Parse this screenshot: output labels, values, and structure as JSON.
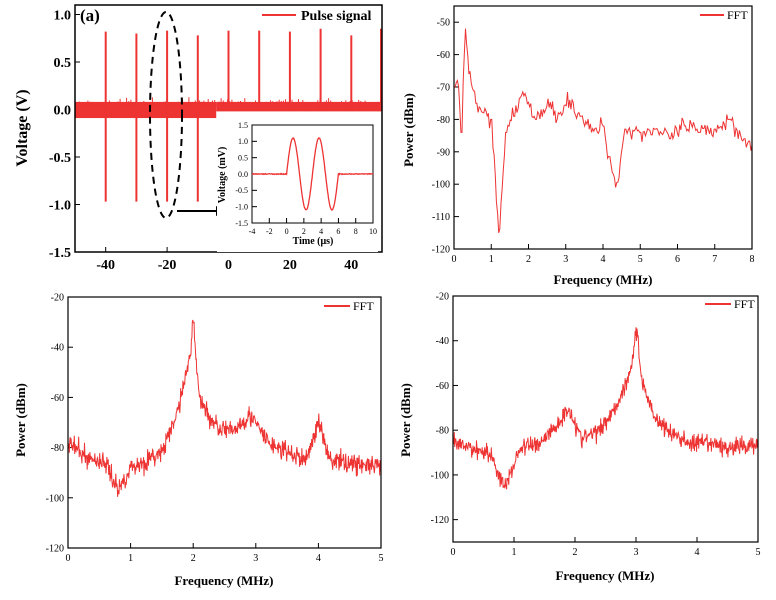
{
  "colors": {
    "signal": "#ee3333",
    "axis": "#000000"
  },
  "chart_data": [
    {
      "id": "a",
      "type": "line",
      "panel_label": "(a)",
      "title": "",
      "xlabel": "",
      "ylabel": "Voltage (V)",
      "xlim": [
        -50,
        50
      ],
      "ylim": [
        -1.5,
        1.1
      ],
      "xticks": [
        -40,
        -20,
        0,
        20,
        40
      ],
      "yticks": [
        -1.5,
        -1.0,
        -0.5,
        0.0,
        0.5,
        1.0
      ],
      "ytick_labels": [
        "-1.5",
        "-1.0",
        "-0.5",
        "0.0",
        "0.5",
        "1.0"
      ],
      "legend": [
        "Pulse signal"
      ],
      "legend_position": "top-right",
      "series": [
        {
          "name": "Pulse signal",
          "pulse_times": [
            -40,
            -30,
            -20,
            -10,
            0,
            10,
            20,
            30,
            40,
            50
          ],
          "pulse_max": [
            0.82,
            0.8,
            0.83,
            0.78,
            0.83,
            0.83,
            0.82,
            0.85,
            0.78,
            0.85
          ],
          "pulse_min": [
            -0.97,
            -0.97,
            -0.97,
            -0.97,
            -0.01,
            -0.01,
            -0.01,
            -0.01,
            -0.01,
            -0.01
          ],
          "noise_band": [
            -0.09,
            0.08
          ],
          "noise_band_after_zero": [
            -0.02,
            0.08
          ]
        }
      ],
      "annotation": "dashed ellipse around pulse at -20 with arrow to inset",
      "inset": {
        "type": "line",
        "xlabel": "Time (μs)",
        "ylabel": "Voltage (mV)",
        "xlim": [
          -4,
          10
        ],
        "ylim": [
          -1.5,
          1.5
        ],
        "xticks": [
          -4,
          -2,
          0,
          2,
          4,
          6,
          8,
          10
        ],
        "yticks": [
          -1.5,
          -1.0,
          -0.5,
          0.0,
          0.5,
          1.0,
          1.5
        ],
        "ytick_labels": [
          "-1.5",
          "-1.0",
          "-0.5",
          "0.0",
          "0.5",
          "1.0",
          "1.5"
        ],
        "signal": "two-cycle sine burst, amplitude 1.1, from 0 to 6 μs, zero elsewhere"
      }
    },
    {
      "id": "b",
      "type": "line",
      "xlabel": "Frequency (MHz)",
      "ylabel": "Power (dBm)",
      "xlim": [
        0,
        8
      ],
      "ylim": [
        -120,
        -45
      ],
      "xticks": [
        0,
        1,
        2,
        3,
        4,
        5,
        6,
        7,
        8
      ],
      "yticks": [
        -120,
        -110,
        -100,
        -90,
        -80,
        -70,
        -60,
        -50
      ],
      "legend": [
        "FFT"
      ],
      "legend_position": "top-right",
      "series": [
        {
          "name": "FFT",
          "x": [
            0,
            0.1,
            0.2,
            0.3,
            0.4,
            0.6,
            0.8,
            1.0,
            1.2,
            1.4,
            1.6,
            1.9,
            2.2,
            2.5,
            2.8,
            3.1,
            3.4,
            3.7,
            4.0,
            4.35,
            4.6,
            5.0,
            5.4,
            5.8,
            6.2,
            6.6,
            7.0,
            7.4,
            7.8,
            8.0
          ],
          "y": [
            -70,
            -68,
            -84,
            -52,
            -66,
            -75,
            -78,
            -80,
            -115,
            -84,
            -79,
            -72,
            -80,
            -76,
            -78,
            -74,
            -79,
            -84,
            -82,
            -101,
            -83,
            -84,
            -83,
            -86,
            -82,
            -84,
            -83,
            -80,
            -86,
            -88
          ]
        }
      ]
    },
    {
      "id": "c",
      "type": "line",
      "xlabel": "Frequency (MHz)",
      "ylabel": "Power (dBm)",
      "xlim": [
        0,
        5
      ],
      "ylim": [
        -120,
        -20
      ],
      "xticks": [
        0,
        1,
        2,
        3,
        4,
        5
      ],
      "yticks": [
        -120,
        -100,
        -80,
        -60,
        -40,
        -20
      ],
      "legend": [
        "FFT"
      ],
      "legend_position": "top-right",
      "series": [
        {
          "name": "FFT",
          "x": [
            0,
            0.3,
            0.6,
            0.8,
            1.0,
            1.2,
            1.5,
            1.7,
            1.85,
            1.95,
            2.0,
            2.1,
            2.3,
            2.6,
            2.9,
            3.2,
            3.5,
            3.8,
            4.0,
            4.2,
            4.5,
            5.0
          ],
          "y": [
            -78,
            -84,
            -86,
            -97,
            -88,
            -86,
            -82,
            -70,
            -55,
            -43,
            -30,
            -60,
            -70,
            -74,
            -67,
            -78,
            -82,
            -85,
            -70,
            -85,
            -86,
            -88
          ]
        }
      ]
    },
    {
      "id": "d",
      "type": "line",
      "xlabel": "Frequency (MHz)",
      "ylabel": "Power (dBm)",
      "xlim": [
        0,
        5
      ],
      "ylim": [
        -130,
        -20
      ],
      "xticks": [
        0,
        1,
        2,
        3,
        4,
        5
      ],
      "yticks": [
        -120,
        -100,
        -80,
        -60,
        -40,
        -20
      ],
      "legend": [
        "FFT"
      ],
      "legend_position": "top-right",
      "series": [
        {
          "name": "FFT",
          "x": [
            0,
            0.3,
            0.6,
            0.85,
            1.1,
            1.4,
            1.7,
            1.9,
            2.1,
            2.4,
            2.7,
            2.85,
            2.95,
            3.0,
            3.1,
            3.3,
            3.6,
            3.9,
            4.2,
            4.5,
            4.8,
            5.0
          ],
          "y": [
            -86,
            -88,
            -90,
            -106,
            -88,
            -86,
            -78,
            -70,
            -84,
            -80,
            -68,
            -58,
            -48,
            -34,
            -58,
            -74,
            -82,
            -86,
            -86,
            -88,
            -87,
            -86
          ]
        }
      ]
    }
  ]
}
